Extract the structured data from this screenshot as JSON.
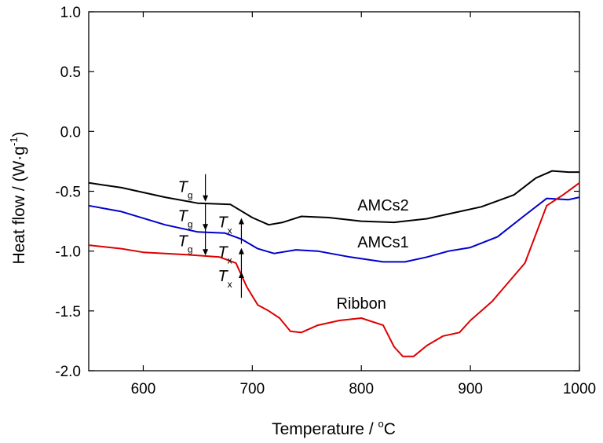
{
  "chart_data": {
    "type": "line",
    "title": "",
    "xlabel": "Temperature / ",
    "xlabel_unit_sup": "o",
    "xlabel_unit": "C",
    "ylabel": "Heat flow / (W·g",
    "ylabel_sup": "-1",
    "ylabel_close": ")",
    "xlim": [
      550,
      1000
    ],
    "ylim": [
      -2.0,
      1.0
    ],
    "xticks": [
      600,
      700,
      800,
      900,
      1000
    ],
    "yticks": [
      1.0,
      0.5,
      0.0,
      -0.5,
      -1.0,
      -1.5,
      -2.0
    ],
    "xtick_labels": [
      "600",
      "700",
      "800",
      "900",
      "1000"
    ],
    "ytick_labels": [
      "1.0",
      "0.5",
      "0.0",
      "-0.5",
      "-1.0",
      "-1.5",
      "-2.0"
    ],
    "grid": false,
    "series": [
      {
        "name": "AMCs2",
        "color": "#000000",
        "x": [
          550,
          580,
          620,
          650,
          680,
          700,
          715,
          728,
          745,
          770,
          800,
          830,
          860,
          890,
          910,
          940,
          960,
          975,
          990,
          1000
        ],
        "y": [
          -0.43,
          -0.47,
          -0.55,
          -0.6,
          -0.61,
          -0.72,
          -0.78,
          -0.76,
          -0.71,
          -0.72,
          -0.75,
          -0.76,
          -0.73,
          -0.67,
          -0.63,
          -0.53,
          -0.39,
          -0.33,
          -0.34,
          -0.34
        ]
      },
      {
        "name": "AMCs1",
        "color": "#0000cc",
        "x": [
          550,
          580,
          620,
          650,
          675,
          690,
          705,
          720,
          740,
          760,
          790,
          820,
          840,
          860,
          880,
          900,
          925,
          950,
          970,
          990,
          1000
        ],
        "y": [
          -0.62,
          -0.67,
          -0.78,
          -0.84,
          -0.85,
          -0.9,
          -0.98,
          -1.02,
          -0.99,
          -1.0,
          -1.05,
          -1.09,
          -1.09,
          -1.05,
          -1.0,
          -0.97,
          -0.88,
          -0.7,
          -0.56,
          -0.57,
          -0.55
        ]
      },
      {
        "name": "Ribbon",
        "color": "#dd0000",
        "x": [
          550,
          580,
          600,
          640,
          670,
          685,
          695,
          705,
          715,
          725,
          735,
          745,
          760,
          780,
          800,
          820,
          830,
          838,
          848,
          860,
          875,
          890,
          900,
          920,
          950,
          970,
          985,
          1000
        ],
        "y": [
          -0.95,
          -0.98,
          -1.01,
          -1.03,
          -1.05,
          -1.1,
          -1.3,
          -1.45,
          -1.5,
          -1.56,
          -1.67,
          -1.68,
          -1.62,
          -1.58,
          -1.56,
          -1.62,
          -1.8,
          -1.88,
          -1.88,
          -1.79,
          -1.71,
          -1.68,
          -1.58,
          -1.42,
          -1.1,
          -0.62,
          -0.53,
          -0.43
        ]
      }
    ],
    "series_labels": [
      {
        "text": "AMCs2",
        "x": 820,
        "y": -0.66
      },
      {
        "text": "AMCs1",
        "x": 820,
        "y": -0.97
      },
      {
        "text": "Ribbon",
        "x": 800,
        "y": -1.48
      }
    ],
    "annotations": [
      {
        "main": "T",
        "sub": "g",
        "x": 657,
        "y": -0.6,
        "direction": "down"
      },
      {
        "main": "T",
        "sub": "g",
        "x": 657,
        "y": -0.84,
        "direction": "down"
      },
      {
        "main": "T",
        "sub": "g",
        "x": 657,
        "y": -1.05,
        "direction": "down"
      },
      {
        "main": "T",
        "sub": "x",
        "x": 690,
        "y": -0.71,
        "direction": "up"
      },
      {
        "main": "T",
        "sub": "x",
        "x": 690,
        "y": -0.96,
        "direction": "up"
      },
      {
        "main": "T",
        "sub": "x",
        "x": 690,
        "y": -1.16,
        "direction": "up"
      }
    ]
  }
}
